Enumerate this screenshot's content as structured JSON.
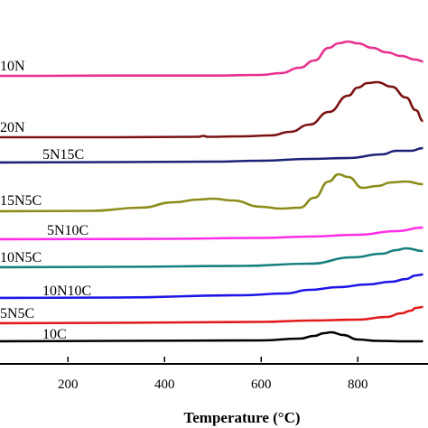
{
  "chart_data": {
    "type": "line",
    "xlabel": "Temperature (°C)",
    "xlim": [
      50,
      935
    ],
    "x_ticks": [
      200,
      400,
      600,
      800
    ],
    "y_ticks_shown": false,
    "series": [
      {
        "name": "10N",
        "color": "#e8308f",
        "y_offset": 84,
        "points": [
          [
            50,
            0
          ],
          [
            150,
            0
          ],
          [
            300,
            -0.3
          ],
          [
            500,
            -0.3
          ],
          [
            600,
            -1
          ],
          [
            640,
            -3
          ],
          [
            680,
            -9
          ],
          [
            710,
            -17
          ],
          [
            740,
            -31
          ],
          [
            760,
            -36
          ],
          [
            780,
            -38
          ],
          [
            800,
            -36
          ],
          [
            830,
            -31
          ],
          [
            860,
            -26
          ],
          [
            890,
            -22
          ],
          [
            920,
            -18
          ],
          [
            935,
            -16
          ]
        ]
      },
      {
        "name": "20N",
        "color": "#7b1212",
        "y_offset": 152,
        "points": [
          [
            50,
            0
          ],
          [
            300,
            0
          ],
          [
            470,
            -0.5
          ],
          [
            480,
            -1.5
          ],
          [
            490,
            -0.5
          ],
          [
            560,
            -1
          ],
          [
            620,
            -2
          ],
          [
            660,
            -6
          ],
          [
            700,
            -14
          ],
          [
            740,
            -28
          ],
          [
            780,
            -46
          ],
          [
            800,
            -55
          ],
          [
            820,
            -60
          ],
          [
            840,
            -61
          ],
          [
            870,
            -56
          ],
          [
            900,
            -44
          ],
          [
            920,
            -30
          ],
          [
            935,
            -18
          ]
        ]
      },
      {
        "name": "5N15C",
        "color": "#1c2377",
        "y_offset": 180,
        "points": [
          [
            50,
            0
          ],
          [
            300,
            -0.5
          ],
          [
            500,
            -1
          ],
          [
            600,
            -2
          ],
          [
            700,
            -4
          ],
          [
            780,
            -5
          ],
          [
            850,
            -9
          ],
          [
            880,
            -13
          ],
          [
            910,
            -13
          ],
          [
            935,
            -16
          ]
        ]
      },
      {
        "name": "15N5C",
        "color": "#8b8b19",
        "y_offset": 234,
        "points": [
          [
            50,
            0
          ],
          [
            250,
            -0.5
          ],
          [
            350,
            -4
          ],
          [
            420,
            -10
          ],
          [
            470,
            -13
          ],
          [
            500,
            -14
          ],
          [
            540,
            -12
          ],
          [
            600,
            -5
          ],
          [
            640,
            -3
          ],
          [
            680,
            -4
          ],
          [
            710,
            -15
          ],
          [
            740,
            -33
          ],
          [
            760,
            -41
          ],
          [
            780,
            -38
          ],
          [
            810,
            -26
          ],
          [
            840,
            -28
          ],
          [
            870,
            -32
          ],
          [
            900,
            -33
          ],
          [
            935,
            -30
          ]
        ]
      },
      {
        "name": "5N10C",
        "color": "#ff2fe8",
        "y_offset": 265,
        "points": [
          [
            50,
            0
          ],
          [
            400,
            -0.5
          ],
          [
            600,
            -1.5
          ],
          [
            700,
            -3
          ],
          [
            800,
            -5
          ],
          [
            880,
            -9
          ],
          [
            935,
            -13
          ]
        ]
      },
      {
        "name": "10N5C",
        "color": "#167f7f",
        "y_offset": 296,
        "points": [
          [
            50,
            0
          ],
          [
            300,
            -0.5
          ],
          [
            560,
            -1.5
          ],
          [
            700,
            -4
          ],
          [
            790,
            -11
          ],
          [
            850,
            -15
          ],
          [
            880,
            -19
          ],
          [
            900,
            -21
          ],
          [
            935,
            -18
          ]
        ]
      },
      {
        "name": "10N10C",
        "color": "#1f16e6",
        "y_offset": 330,
        "points": [
          [
            50,
            0
          ],
          [
            300,
            -0.5
          ],
          [
            560,
            -3
          ],
          [
            650,
            -5
          ],
          [
            700,
            -9
          ],
          [
            760,
            -12
          ],
          [
            820,
            -15
          ],
          [
            870,
            -18
          ],
          [
            900,
            -21
          ],
          [
            920,
            -25
          ],
          [
            935,
            -26
          ]
        ]
      },
      {
        "name": "5N5C",
        "color": "#e11a1a",
        "y_offset": 358,
        "points": [
          [
            50,
            0
          ],
          [
            300,
            -0.5
          ],
          [
            600,
            -1.5
          ],
          [
            700,
            -3
          ],
          [
            800,
            -4
          ],
          [
            860,
            -7
          ],
          [
            890,
            -11
          ],
          [
            910,
            -14
          ],
          [
            920,
            -17
          ],
          [
            935,
            -18
          ]
        ]
      },
      {
        "name": "10C",
        "color": "#000000",
        "y_offset": 378,
        "points": [
          [
            50,
            0
          ],
          [
            300,
            -0.5
          ],
          [
            600,
            -1
          ],
          [
            680,
            -3
          ],
          [
            710,
            -6
          ],
          [
            730,
            -9
          ],
          [
            745,
            -10
          ],
          [
            770,
            -7
          ],
          [
            800,
            -2
          ],
          [
            840,
            -0.5
          ],
          [
            900,
            0
          ],
          [
            935,
            0
          ]
        ]
      }
    ]
  }
}
